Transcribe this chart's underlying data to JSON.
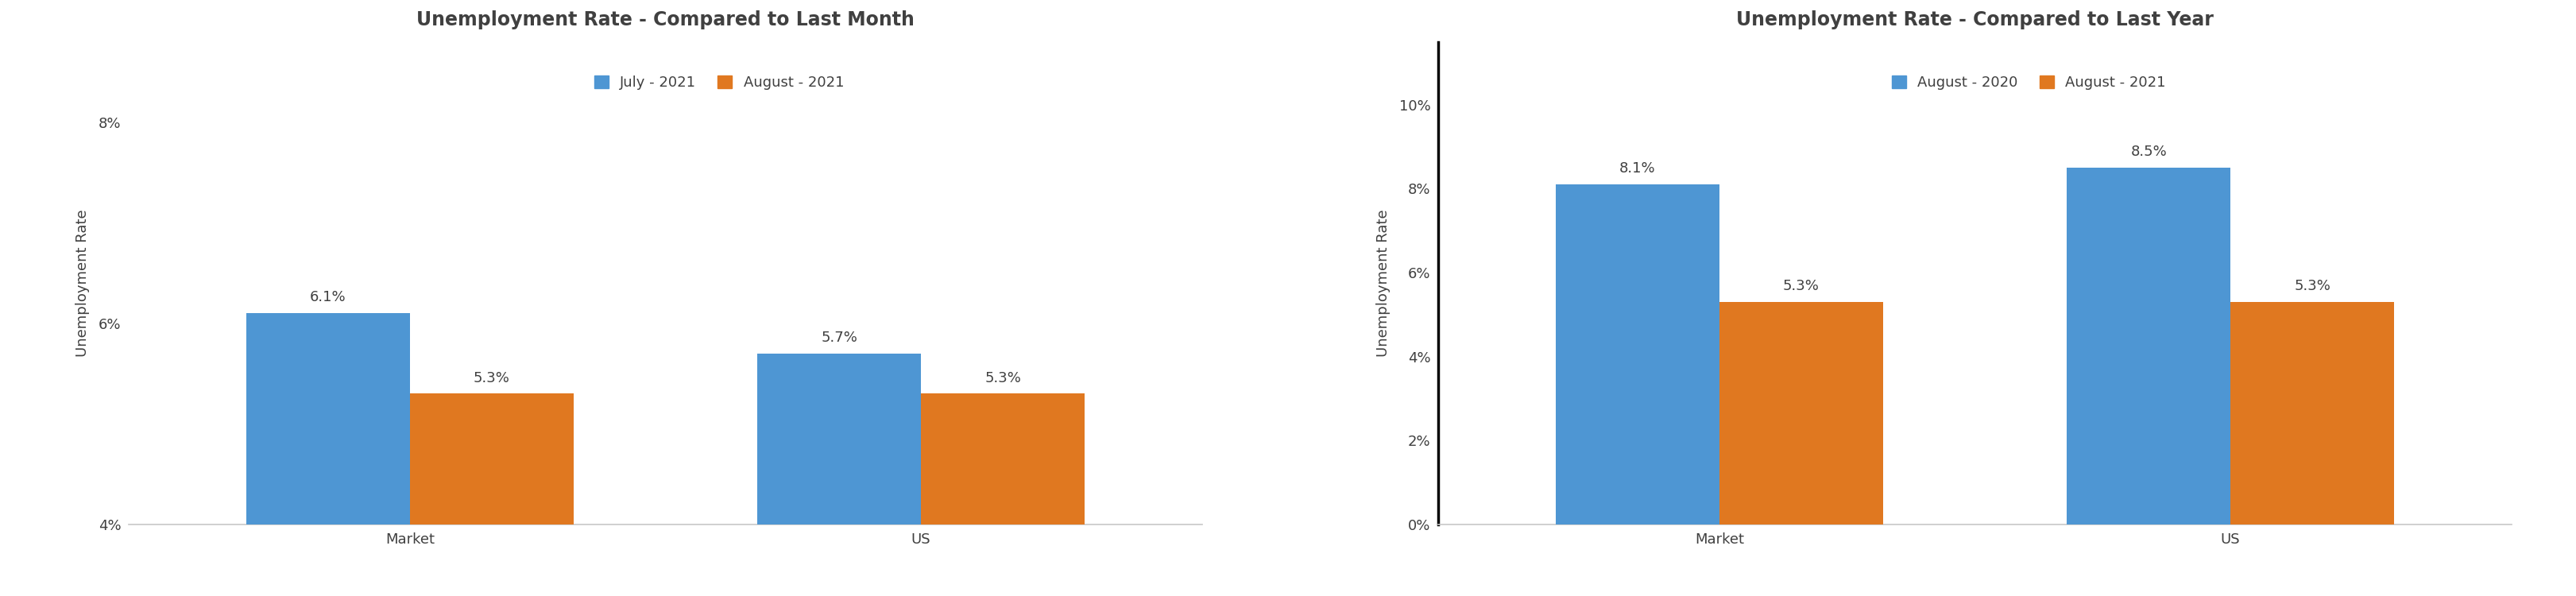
{
  "chart1": {
    "title": "Unemployment Rate - Compared to Last Month",
    "legend": [
      "July - 2021",
      "August - 2021"
    ],
    "categories": [
      "Market",
      "US"
    ],
    "series1_values": [
      6.1,
      5.7
    ],
    "series2_values": [
      5.3,
      5.3
    ],
    "series1_labels": [
      "6.1%",
      "5.7%"
    ],
    "series2_labels": [
      "5.3%",
      "5.3%"
    ],
    "ylabel": "Unemployment Rate",
    "yticks": [
      4,
      6,
      8
    ],
    "yticklabels": [
      "4%",
      "6%",
      "8%"
    ],
    "ylim": [
      4,
      8.8
    ],
    "ybase": 4
  },
  "chart2": {
    "title": "Unemployment Rate - Compared to Last Year",
    "legend": [
      "August - 2020",
      "August - 2021"
    ],
    "categories": [
      "Market",
      "US"
    ],
    "series1_values": [
      8.1,
      8.5
    ],
    "series2_values": [
      5.3,
      5.3
    ],
    "series1_labels": [
      "8.1%",
      "8.5%"
    ],
    "series2_labels": [
      "5.3%",
      "5.3%"
    ],
    "ylabel": "Unemployment Rate",
    "yticks": [
      0,
      2,
      4,
      6,
      8,
      10
    ],
    "yticklabels": [
      "0%",
      "2%",
      "4%",
      "6%",
      "8%",
      "10%"
    ],
    "ylim": [
      0,
      11.5
    ],
    "ybase": 0
  },
  "color_blue": "#4E96D3",
  "color_orange": "#E07820",
  "bg_color": "#FFFFFF",
  "title_fontsize": 17,
  "legend_fontsize": 13,
  "label_fontsize": 13,
  "tick_fontsize": 13,
  "ylabel_fontsize": 13,
  "bar_width": 0.32,
  "text_color": "#404040",
  "axis_color": "#C8C8C8",
  "divider_color": "#000000",
  "divider_linewidth": 2.5
}
